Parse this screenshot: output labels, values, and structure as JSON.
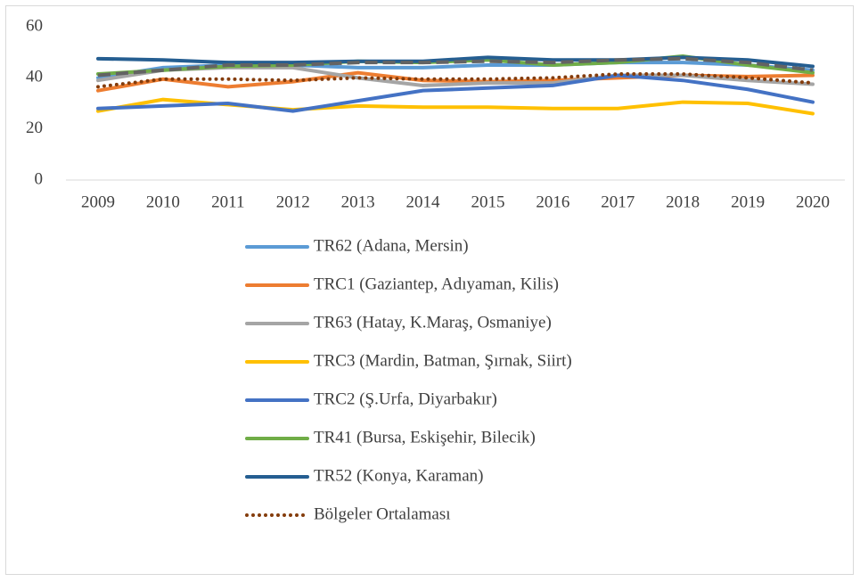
{
  "chart_data": {
    "type": "line",
    "x": [
      "2009",
      "2010",
      "2011",
      "2012",
      "2013",
      "2014",
      "2015",
      "2016",
      "2017",
      "2018",
      "2019",
      "2020"
    ],
    "ylim": [
      0,
      60
    ],
    "yticks": [
      0,
      20,
      40,
      60
    ],
    "series": [
      {
        "name": "TR62 (Adana, Mersin)",
        "color": "#5b9bd5",
        "values": [
          40,
          44,
          45,
          45,
          44,
          44,
          45,
          45,
          46,
          46,
          45,
          43
        ]
      },
      {
        "name": "TRC1 (Gaziantep, Adıyaman, Kilis)",
        "color": "#ed7d31",
        "values": [
          35,
          39.5,
          36.5,
          38.5,
          42,
          39,
          38.5,
          39,
          40,
          41,
          40.5,
          41
        ]
      },
      {
        "name": "TR63 (Hatay, K.Maraş, Osmaniye)",
        "color": "#a5a5a5",
        "values": [
          39,
          43,
          44,
          44,
          40,
          37,
          38,
          38,
          41,
          41,
          39,
          37.5
        ]
      },
      {
        "name": "TRC3 (Mardin, Batman, Şırnak, Siirt)",
        "color": "#ffc000",
        "values": [
          27,
          31.5,
          29.5,
          27.5,
          29,
          28.5,
          28.5,
          28,
          28,
          30.5,
          30,
          26
        ]
      },
      {
        "name": "TRC2 (Ş.Urfa, Diyarbakır)",
        "color": "#4472c4",
        "values": [
          28,
          29,
          30,
          27,
          31,
          35,
          36,
          37,
          41,
          39,
          35.5,
          30.5
        ]
      },
      {
        "name": "TR41 (Bursa, Eskişehir, Bilecik)",
        "color": "#70ad47",
        "values": [
          41.5,
          43,
          44.5,
          45,
          46.5,
          46,
          47,
          45,
          46,
          48.5,
          45,
          42
        ]
      },
      {
        "name": "TR52 (Konya, Karaman)",
        "color": "#255e91",
        "values": [
          47.5,
          47,
          46,
          46,
          46.5,
          46.5,
          48,
          47,
          47,
          48,
          47,
          44.5
        ]
      },
      {
        "name": "Bölgeler Ortalaması",
        "color": "#843c0c",
        "style": "dotted",
        "values": [
          36.5,
          39.5,
          39.5,
          39,
          40,
          39.5,
          39.5,
          40,
          41.5,
          41.5,
          40,
          38
        ]
      },
      {
        "color": "#636363",
        "style": "dashed",
        "values": [
          41,
          43,
          45,
          45,
          46,
          46,
          46.5,
          46,
          47,
          47.5,
          46,
          43
        ]
      }
    ]
  }
}
